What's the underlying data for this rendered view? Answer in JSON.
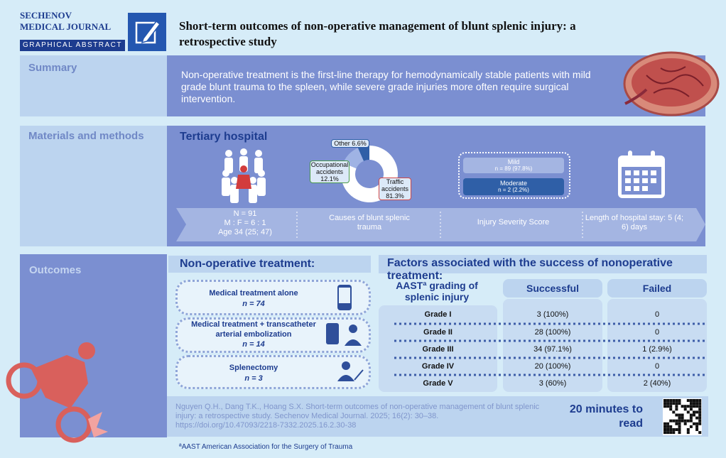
{
  "header": {
    "journal_line1": "SECHENOV",
    "journal_line2": "MEDICAL JOURNAL",
    "badge": "GRAPHICAL ABSTRACT",
    "title": "Short-term outcomes of non-operative management of blunt splenic injury: a retrospective study"
  },
  "summary": {
    "label": "Summary",
    "text": "Non-operative treatment is the first-line therapy for hemodynamically stable patients with mild grade blunt trauma to the spleen, while severe grade injuries more often require surgical intervention."
  },
  "methods": {
    "label": "Materials and methods",
    "setting": "Tertiary hospital",
    "patients": [
      "N = 91",
      "M : F = 6 : 1",
      "Age 34 (25; 47)"
    ],
    "causes": {
      "title": "Causes of blunt splenic trauma",
      "categories": [
        "Other",
        "Occupational accidents",
        "Traffic accidents"
      ],
      "values": [
        6.6,
        12.1,
        81.3
      ],
      "value_labels": [
        "6.6%",
        "12.1%",
        "81.3%"
      ],
      "colors": [
        "#2f5fa7",
        "#9fb3e4",
        "#ffffff"
      ]
    },
    "severity": {
      "title": "Injury Severity Score",
      "levels": [
        {
          "name": "Mild",
          "detail": "n = 89 (97.8%)"
        },
        {
          "name": "Moderate",
          "detail": "n = 2 (2.2%)"
        }
      ]
    },
    "stay": "Length of hospital stay: 5 (4; 6) days"
  },
  "outcomes": {
    "label": "Outcomes",
    "treatment_title": "Non-operative treatment:",
    "treatments": [
      {
        "name": "Medical treatment alone",
        "n": "n = 74"
      },
      {
        "name": "Medical treatment + transcatheter arterial embolization",
        "n": "n = 14"
      },
      {
        "name": "Splenectomy",
        "n": "n = 3"
      }
    ],
    "factors_title": "Factors associated with the success of nonoperative treatment:",
    "table": {
      "header": [
        "AASTª grading of splenic injury",
        "Successful",
        "Failed"
      ],
      "rows": [
        [
          "Grade I",
          "3 (100%)",
          "0"
        ],
        [
          "Grade II",
          "28 (100%)",
          "0"
        ],
        [
          "Grade III",
          "34 (97.1%)",
          "1 (2.9%)"
        ],
        [
          "Grade IV",
          "20 (100%)",
          "0"
        ],
        [
          "Grade V",
          "3 (60%)",
          "2 (40%)"
        ]
      ]
    }
  },
  "citation": "Nguyen Q.H., Dang T.K., Hoang S.X. Short-term outcomes of non-operative management of blunt splenic injury: a retrospective study. Sechenov Medical Journal. 2025; 16(2): 30–38. https://doi.org/10.47093/2218-7332.2025.16.2.30-38",
  "read_time": "20 minutes to read",
  "footnote": "ªAAST American Association for the Surgery of Trauma"
}
